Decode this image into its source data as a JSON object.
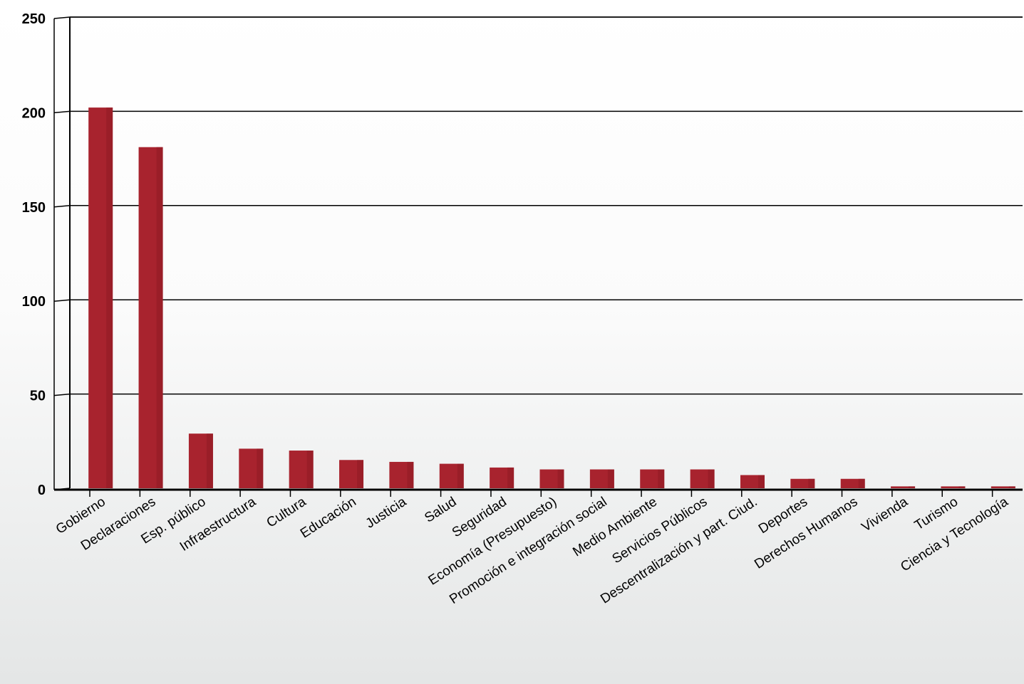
{
  "chart_data": {
    "type": "bar",
    "categories": [
      "Gobierno",
      "Declaraciones",
      "Esp. público",
      "Infraestructura",
      "Cultura",
      "Educación",
      "Justicia",
      "Salud",
      "Seguridad",
      "Economía (Presupuesto)",
      "Promoción e integración social",
      "Medio Ambiente",
      "Servicios Públicos",
      "Descentralización y part. Ciud.",
      "Deportes",
      "Derechos Humanos",
      "Vivienda",
      "Turismo",
      "Ciencia y Tecnología"
    ],
    "values": [
      202,
      181,
      29,
      21,
      20,
      15,
      14,
      13,
      11,
      10,
      10,
      10,
      10,
      7,
      5,
      5,
      1,
      1,
      1
    ],
    "ylim": [
      0,
      250
    ],
    "yticks": [
      0,
      50,
      100,
      150,
      200,
      250
    ],
    "grid": true,
    "legend": "none",
    "bar_color": "#a8232e"
  }
}
